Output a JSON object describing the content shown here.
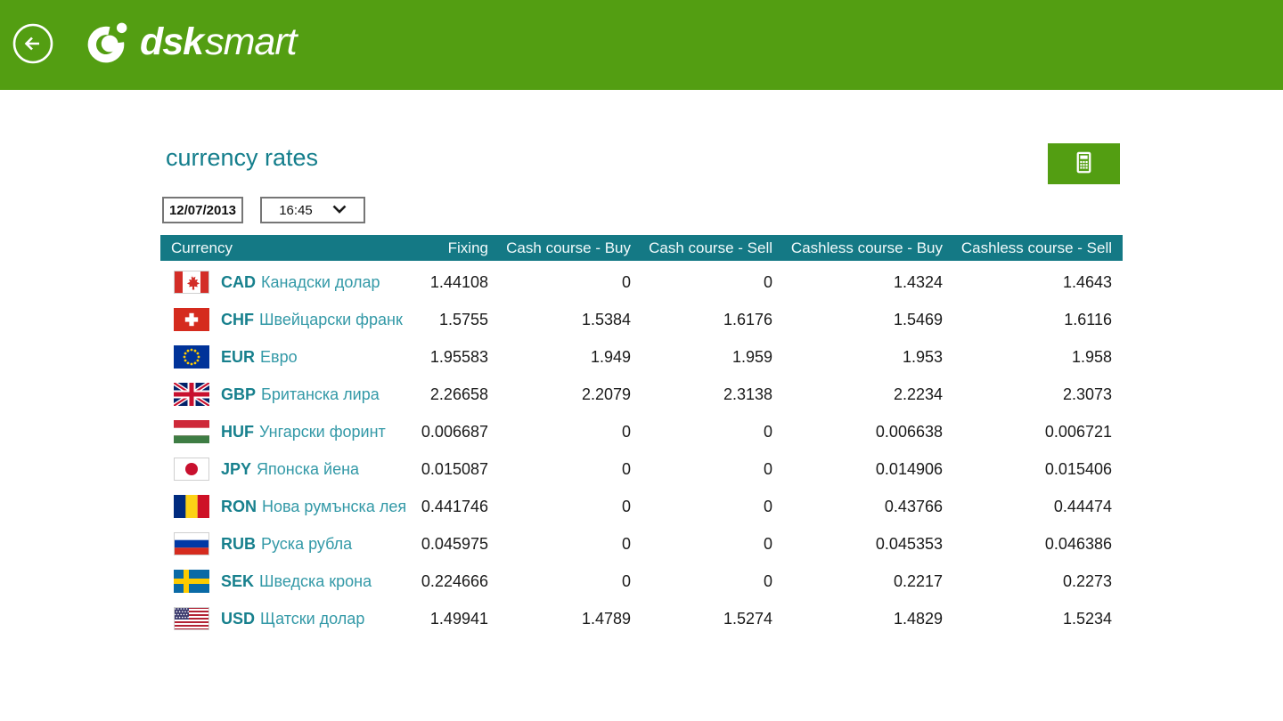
{
  "colors": {
    "brand_green": "#539E12",
    "table_header_teal": "#147985",
    "code_teal": "#17808D",
    "name_teal": "#3399A7",
    "title_teal": "#147E8C"
  },
  "header": {
    "brand_bold": "dsk",
    "brand_light": "smart"
  },
  "page": {
    "title": "currency rates"
  },
  "controls": {
    "date_value": "12/07/2013",
    "time_value": "16:45"
  },
  "table": {
    "columns": [
      "Currency",
      "Fixing",
      "Cash course - Buy",
      "Cash course - Sell",
      "Cashless course - Buy",
      "Cashless course - Sell"
    ],
    "rows": [
      {
        "flag": "canada",
        "code": "CAD",
        "name": "Канадски долар",
        "fixing": "1.44108",
        "cash_buy": "0",
        "cash_sell": "0",
        "cashless_buy": "1.4324",
        "cashless_sell": "1.4643"
      },
      {
        "flag": "switzerland",
        "code": "CHF",
        "name": "Швейцарски франк",
        "fixing": "1.5755",
        "cash_buy": "1.5384",
        "cash_sell": "1.6176",
        "cashless_buy": "1.5469",
        "cashless_sell": "1.6116"
      },
      {
        "flag": "eu",
        "code": "EUR",
        "name": "Евро",
        "fixing": "1.95583",
        "cash_buy": "1.949",
        "cash_sell": "1.959",
        "cashless_buy": "1.953",
        "cashless_sell": "1.958"
      },
      {
        "flag": "uk",
        "code": "GBP",
        "name": "Британска лира",
        "fixing": "2.26658",
        "cash_buy": "2.2079",
        "cash_sell": "2.3138",
        "cashless_buy": "2.2234",
        "cashless_sell": "2.3073"
      },
      {
        "flag": "hungary",
        "code": "HUF",
        "name": "Унгарски форинт",
        "fixing": "0.006687",
        "cash_buy": "0",
        "cash_sell": "0",
        "cashless_buy": "0.006638",
        "cashless_sell": "0.006721"
      },
      {
        "flag": "japan",
        "code": "JPY",
        "name": "Японска йена",
        "fixing": "0.015087",
        "cash_buy": "0",
        "cash_sell": "0",
        "cashless_buy": "0.014906",
        "cashless_sell": "0.015406"
      },
      {
        "flag": "romania",
        "code": "RON",
        "name": "Нова румънска лея",
        "fixing": "0.441746",
        "cash_buy": "0",
        "cash_sell": "0",
        "cashless_buy": "0.43766",
        "cashless_sell": "0.44474"
      },
      {
        "flag": "russia",
        "code": "RUB",
        "name": "Руска рубла",
        "fixing": "0.045975",
        "cash_buy": "0",
        "cash_sell": "0",
        "cashless_buy": "0.045353",
        "cashless_sell": "0.046386"
      },
      {
        "flag": "sweden",
        "code": "SEK",
        "name": "Шведска крона",
        "fixing": "0.224666",
        "cash_buy": "0",
        "cash_sell": "0",
        "cashless_buy": "0.2217",
        "cashless_sell": "0.2273"
      },
      {
        "flag": "usa",
        "code": "USD",
        "name": "Щатски долар",
        "fixing": "1.49941",
        "cash_buy": "1.4789",
        "cash_sell": "1.5274",
        "cashless_buy": "1.4829",
        "cashless_sell": "1.5234"
      }
    ]
  }
}
